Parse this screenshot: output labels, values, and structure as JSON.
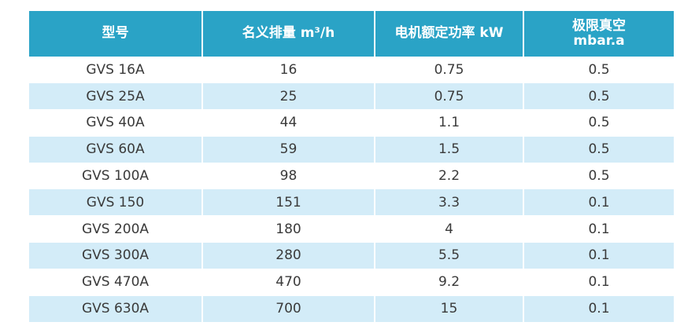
{
  "colors": {
    "header_bg": "#2aa3c6",
    "header_text": "#ffffff",
    "stripe_bg": "#d3ecf8",
    "cell_text": "#3a3a3a"
  },
  "table": {
    "headers": [
      {
        "line1": "型号",
        "line2": ""
      },
      {
        "line1": "名义排量 m³/h",
        "line2": ""
      },
      {
        "line1": "电机额定功率 kW",
        "line2": ""
      },
      {
        "line1": "极限真空",
        "line2": "mbar.a"
      }
    ],
    "rows": [
      [
        "GVS 16A",
        "16",
        "0.75",
        "0.5"
      ],
      [
        "GVS 25A",
        "25",
        "0.75",
        "0.5"
      ],
      [
        "GVS 40A",
        "44",
        "1.1",
        "0.5"
      ],
      [
        "GVS 60A",
        "59",
        "1.5",
        "0.5"
      ],
      [
        "GVS 100A",
        "98",
        "2.2",
        "0.5"
      ],
      [
        "GVS 150",
        "151",
        "3.3",
        "0.1"
      ],
      [
        "GVS 200A",
        "180",
        "4",
        "0.1"
      ],
      [
        "GVS 300A",
        "280",
        "5.5",
        "0.1"
      ],
      [
        "GVS 470A",
        "470",
        "9.2",
        "0.1"
      ],
      [
        "GVS 630A",
        "700",
        "15",
        "0.1"
      ]
    ]
  }
}
